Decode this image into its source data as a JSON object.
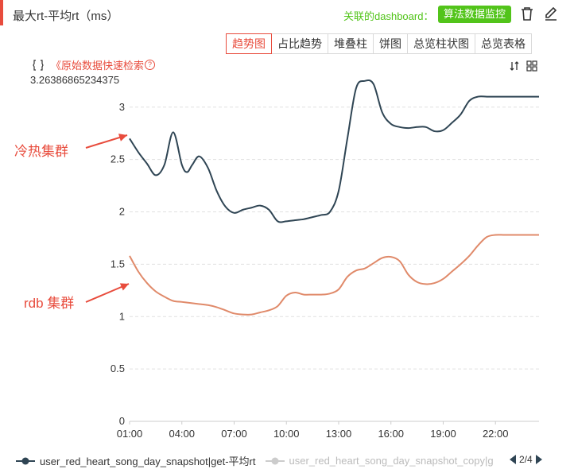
{
  "header": {
    "title": "最大rt-平均rt（ms）",
    "assoc_label": "关联的dashboard：",
    "assoc_button": "算法数据监控"
  },
  "tabs": [
    "趋势图",
    "占比趋势",
    "堆叠柱",
    "饼图",
    "总览柱状图",
    "总览表格"
  ],
  "active_tab": 0,
  "quick_search": "《原始数据快速检索",
  "max_value_label": "3.26386865234375",
  "icons": {
    "trash": "trash-icon",
    "edit": "edit-icon",
    "bracket": "bracket-icon",
    "help": "help-icon",
    "sort": "sort-icon",
    "grid": "grid-icon",
    "pager_prev": "caret-left-icon",
    "pager_next": "caret-right-icon"
  },
  "annotations": {
    "cold_hot": "冷热集群",
    "rdb": "rdb 集群"
  },
  "colors": {
    "accent": "#e84c3d",
    "green": "#52c41a",
    "series1": "#2f4554",
    "series2": "#e08a6a",
    "legend_inactive": "#cccccc"
  },
  "legend": {
    "items": [
      "user_red_heart_song_day_snapshot|get-平均rt",
      "user_red_heart_song_day_snapshot_copy|g"
    ]
  },
  "pager": {
    "text": "2/4"
  },
  "chart_data": {
    "type": "line",
    "x_ticks": [
      "01:00",
      "04:00",
      "07:00",
      "10:00",
      "13:00",
      "16:00",
      "19:00",
      "22:00"
    ],
    "y_ticks": [
      "0",
      "0.5",
      "1",
      "1.5",
      "2",
      "2.5",
      "3"
    ],
    "xlim": [
      0,
      23.5
    ],
    "ylim": [
      0,
      3.26386865234375
    ],
    "series": [
      {
        "name": "user_red_heart_song_day_snapshot|get-平均rt",
        "x": [
          0,
          0.5,
          1,
          1.5,
          2,
          2.5,
          3,
          3.3,
          3.6,
          4,
          4.5,
          5,
          5.5,
          6,
          6.5,
          7,
          7.5,
          8,
          8.5,
          9,
          9.5,
          10,
          10.5,
          11,
          11.5,
          12,
          12.5,
          13,
          13.5,
          14,
          14.5,
          15,
          15.5,
          16,
          16.5,
          17,
          17.5,
          18,
          18.5,
          19,
          19.5,
          20,
          20.5,
          21,
          21.5,
          22,
          22.5,
          23,
          23.5
        ],
        "y": [
          2.7,
          2.57,
          2.46,
          2.35,
          2.45,
          2.76,
          2.45,
          2.38,
          2.45,
          2.53,
          2.42,
          2.2,
          2.05,
          1.99,
          2.02,
          2.04,
          2.06,
          2.02,
          1.91,
          1.91,
          1.92,
          1.93,
          1.95,
          1.97,
          2.0,
          2.2,
          2.7,
          3.18,
          3.25,
          3.22,
          2.95,
          2.84,
          2.81,
          2.8,
          2.81,
          2.81,
          2.77,
          2.78,
          2.85,
          2.93,
          3.06,
          3.1,
          3.1,
          3.1,
          3.1,
          3.1,
          3.1,
          3.1,
          3.1
        ]
      },
      {
        "name": "user_red_heart_song_day_snapshot_copy|g",
        "x": [
          0,
          0.5,
          1,
          1.5,
          2,
          2.5,
          3,
          3.5,
          4,
          4.5,
          5,
          5.5,
          6,
          6.5,
          7,
          7.5,
          8,
          8.5,
          9,
          9.5,
          10,
          10.5,
          11,
          11.5,
          12,
          12.5,
          13,
          13.5,
          14,
          14.5,
          15,
          15.5,
          16,
          16.5,
          17,
          17.5,
          18,
          18.5,
          19,
          19.5,
          20,
          20.5,
          21,
          21.5,
          22,
          22.5,
          23,
          23.5
        ],
        "y": [
          1.58,
          1.43,
          1.32,
          1.24,
          1.19,
          1.15,
          1.14,
          1.13,
          1.12,
          1.11,
          1.09,
          1.06,
          1.03,
          1.02,
          1.02,
          1.04,
          1.06,
          1.1,
          1.2,
          1.23,
          1.21,
          1.21,
          1.21,
          1.22,
          1.26,
          1.38,
          1.44,
          1.46,
          1.51,
          1.56,
          1.57,
          1.53,
          1.4,
          1.33,
          1.31,
          1.32,
          1.36,
          1.43,
          1.5,
          1.58,
          1.68,
          1.76,
          1.78,
          1.78,
          1.78,
          1.78,
          1.78,
          1.78
        ]
      }
    ],
    "grid": true,
    "legend_position": "bottom-left"
  }
}
